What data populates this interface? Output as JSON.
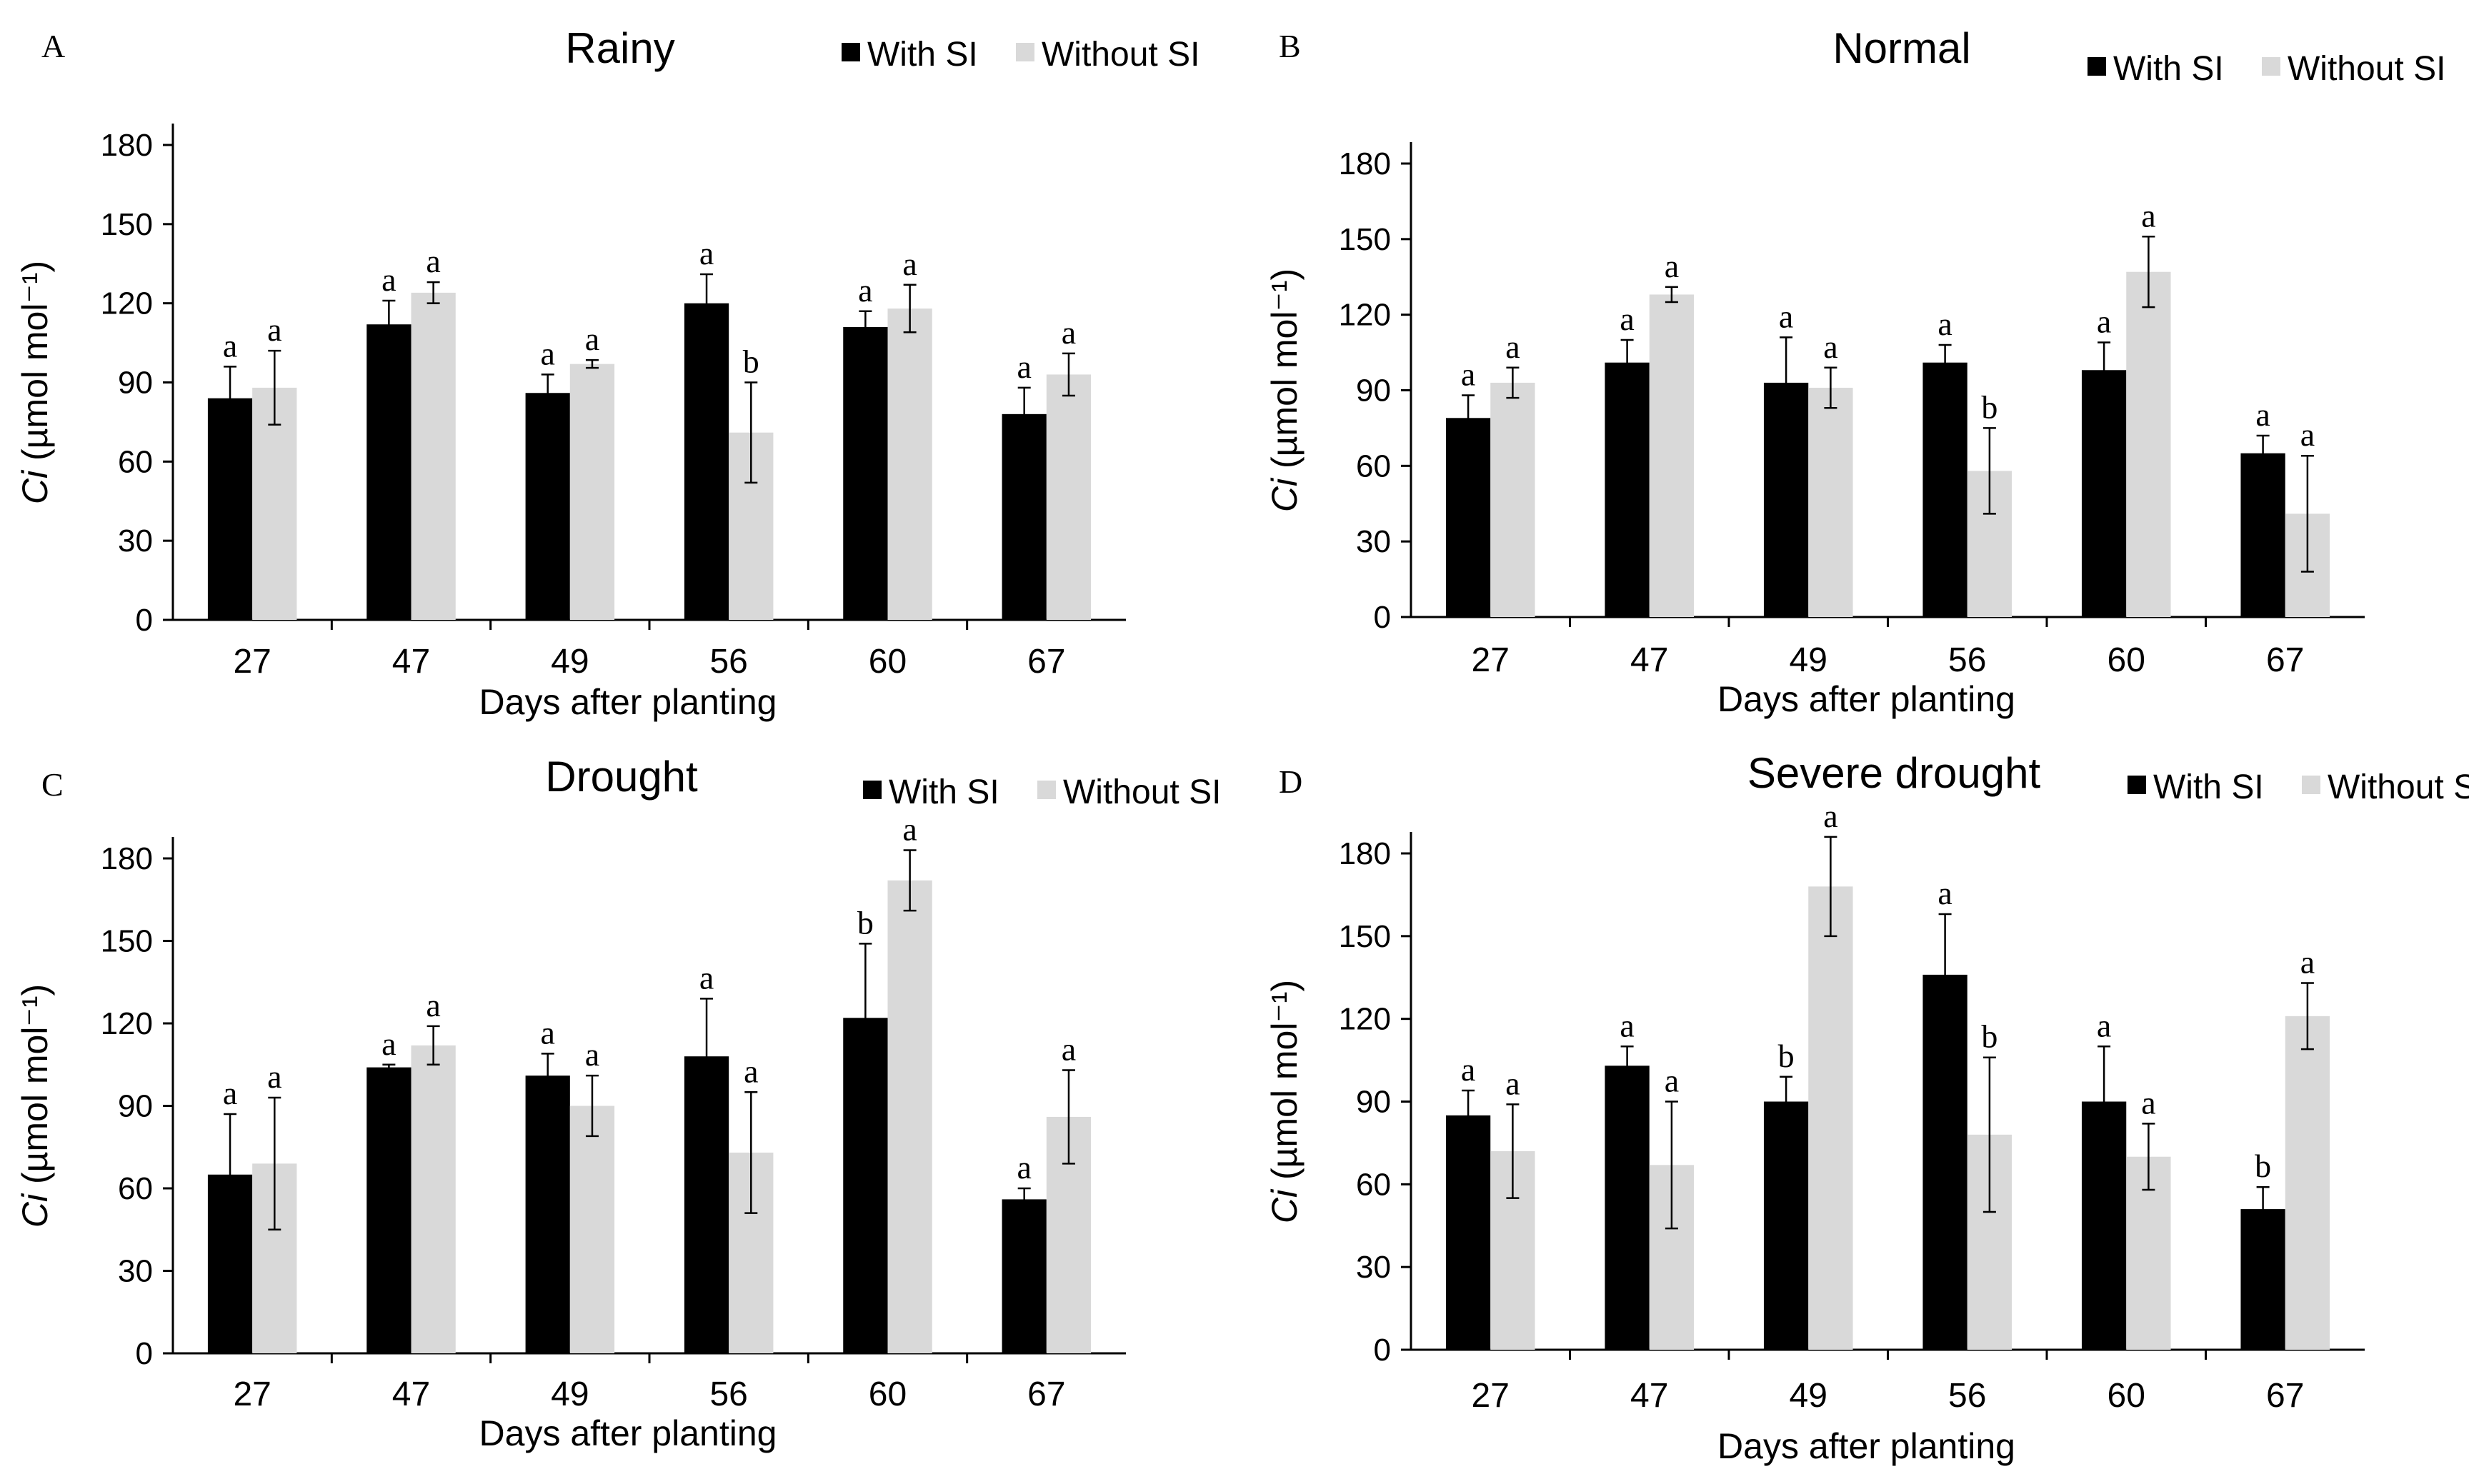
{
  "chart_data": [
    {
      "type": "bar",
      "panel": "A",
      "title": "Rainy",
      "xlabel": "Days after planting",
      "ylabel_italic": "Ci",
      "ylabel_rest": " (µmol mol⁻¹)",
      "categories": [
        "27",
        "47",
        "49",
        "56",
        "60",
        "67"
      ],
      "ylim": [
        0,
        180
      ],
      "yticks": [
        0,
        30,
        60,
        90,
        120,
        150,
        180
      ],
      "legend": "top-right",
      "series": [
        {
          "name": "With SI",
          "color": "#000000",
          "values": [
            84,
            112,
            86,
            120,
            111,
            78
          ],
          "errors": [
            12,
            9,
            7,
            11,
            6,
            10
          ],
          "letters": [
            "a",
            "a",
            "a",
            "a",
            "a",
            "a"
          ]
        },
        {
          "name": "Without SI",
          "color": "#d9d9d9",
          "values": [
            88,
            124,
            97,
            71,
            118,
            93
          ],
          "errors": [
            14,
            4,
            1.5,
            19,
            9,
            8
          ],
          "letters": [
            "a",
            "a",
            "a",
            "b",
            "a",
            "a"
          ]
        }
      ]
    },
    {
      "type": "bar",
      "panel": "B",
      "title": "Normal",
      "xlabel": "Days after planting",
      "ylabel_italic": "Ci",
      "ylabel_rest": " (µmol mol⁻¹)",
      "categories": [
        "27",
        "47",
        "49",
        "56",
        "60",
        "67"
      ],
      "ylim": [
        0,
        180
      ],
      "yticks": [
        0,
        30,
        60,
        90,
        120,
        150,
        180
      ],
      "legend": "top-right",
      "series": [
        {
          "name": "With SI",
          "color": "#000000",
          "values": [
            79,
            101,
            93,
            101,
            98,
            65
          ],
          "errors": [
            9,
            9,
            18,
            7,
            11,
            7
          ],
          "letters": [
            "a",
            "a",
            "a",
            "a",
            "a",
            "a"
          ]
        },
        {
          "name": "Without SI",
          "color": "#d9d9d9",
          "values": [
            93,
            128,
            91,
            58,
            137,
            41
          ],
          "errors": [
            6,
            3,
            8,
            17,
            14,
            23
          ],
          "letters": [
            "a",
            "a",
            "a",
            "b",
            "a",
            "a"
          ]
        }
      ]
    },
    {
      "type": "bar",
      "panel": "C",
      "title": "Drought",
      "xlabel": "Days after planting",
      "ylabel_italic": "Ci",
      "ylabel_rest": " (µmol mol⁻¹)",
      "categories": [
        "27",
        "47",
        "49",
        "56",
        "60",
        "67"
      ],
      "ylim": [
        0,
        180
      ],
      "yticks": [
        0,
        30,
        60,
        90,
        120,
        150,
        180
      ],
      "legend": "top-right",
      "series": [
        {
          "name": "With SI",
          "color": "#000000",
          "values": [
            65,
            104,
            101,
            108,
            122,
            56
          ],
          "errors": [
            22,
            1,
            8,
            21,
            27,
            4
          ],
          "letters": [
            "a",
            "a",
            "a",
            "a",
            "b",
            "a"
          ]
        },
        {
          "name": "Without SI",
          "color": "#d9d9d9",
          "values": [
            69,
            112,
            90,
            73,
            172,
            86
          ],
          "errors": [
            24,
            7,
            11,
            22,
            11,
            17
          ],
          "letters": [
            "a",
            "a",
            "a",
            "a",
            "a",
            "a"
          ]
        }
      ]
    },
    {
      "type": "bar",
      "panel": "D",
      "title": "Severe drought",
      "xlabel": "Days after planting",
      "ylabel_italic": "Ci",
      "ylabel_rest": " (µmol mol⁻¹)",
      "categories": [
        "27",
        "47",
        "49",
        "56",
        "60",
        "67"
      ],
      "ylim": [
        0,
        180
      ],
      "yticks": [
        0,
        30,
        60,
        90,
        120,
        150,
        180
      ],
      "legend": "top-right",
      "series": [
        {
          "name": "With SI",
          "color": "#000000",
          "values": [
            85,
            103,
            90,
            136,
            90,
            51
          ],
          "errors": [
            9,
            7,
            9,
            22,
            20,
            8
          ],
          "letters": [
            "a",
            "a",
            "b",
            "a",
            "a",
            "b"
          ]
        },
        {
          "name": "Without SI",
          "color": "#d9d9d9",
          "values": [
            72,
            67,
            168,
            78,
            70,
            121
          ],
          "errors": [
            17,
            23,
            18,
            28,
            12,
            12
          ],
          "letters": [
            "a",
            "a",
            "a",
            "b",
            "a",
            "a"
          ]
        }
      ]
    }
  ]
}
